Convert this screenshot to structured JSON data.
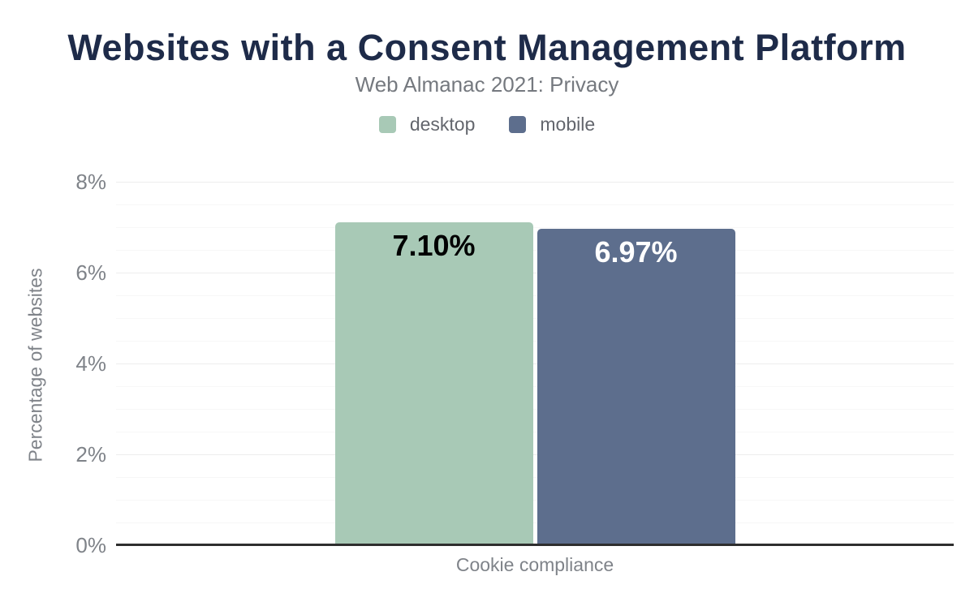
{
  "chart_data": {
    "type": "bar",
    "title": "Websites with a Consent Management Platform",
    "subtitle": "Web Almanac 2021: Privacy",
    "categories": [
      "Cookie compliance"
    ],
    "series": [
      {
        "name": "desktop",
        "values": [
          7.1
        ],
        "data_labels": [
          "7.10%"
        ],
        "color": "#a8c9b6",
        "data_label_color": "#000000"
      },
      {
        "name": "mobile",
        "values": [
          6.97
        ],
        "data_labels": [
          "6.97%"
        ],
        "color": "#5d6e8d",
        "data_label_color": "#ffffff"
      }
    ],
    "ylabel": "Percentage of websites",
    "ylim": [
      0,
      8
    ],
    "y_ticks": [
      {
        "value": 0,
        "label": "0%"
      },
      {
        "value": 2,
        "label": "2%"
      },
      {
        "value": 4,
        "label": "4%"
      },
      {
        "value": 6,
        "label": "6%"
      },
      {
        "value": 8,
        "label": "8%"
      }
    ],
    "grid": {
      "minor_step": 0.5,
      "major_step": 2,
      "visible": true
    },
    "legend_position": "top"
  },
  "colors": {
    "title_color": "#1e2b49",
    "subtitle_color": "#75797f",
    "legend_color": "#63666d",
    "tick_color": "#7f8389",
    "grid_major": "#ededed",
    "grid_minor": "#f7f7f7",
    "axis_color": "#2e2e2e"
  }
}
